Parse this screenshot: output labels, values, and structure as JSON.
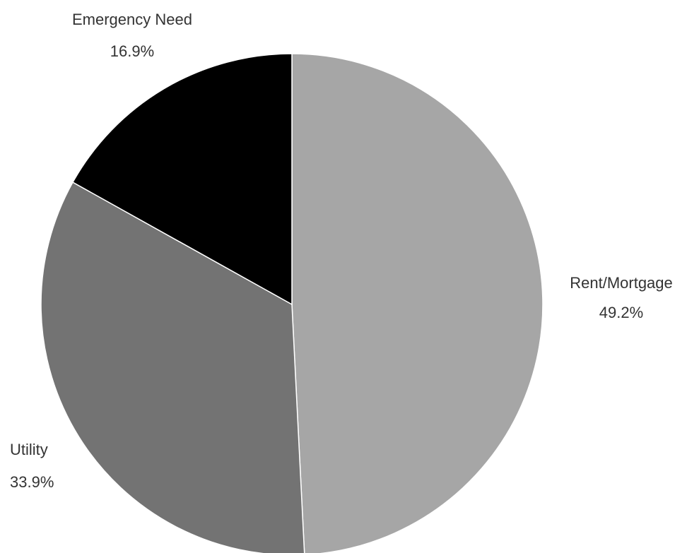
{
  "chart_data": {
    "type": "pie",
    "title": "",
    "legend": "none",
    "slices": [
      {
        "label": "Rent/Mortgage",
        "value": 49.2,
        "value_label": "49.2%",
        "color": "#a6a6a6"
      },
      {
        "label": "Utility",
        "value": 33.9,
        "value_label": "33.9%",
        "color": "#737373"
      },
      {
        "label": "Emergency Need",
        "value": 16.9,
        "value_label": "16.9%",
        "color": "#000000"
      }
    ]
  }
}
